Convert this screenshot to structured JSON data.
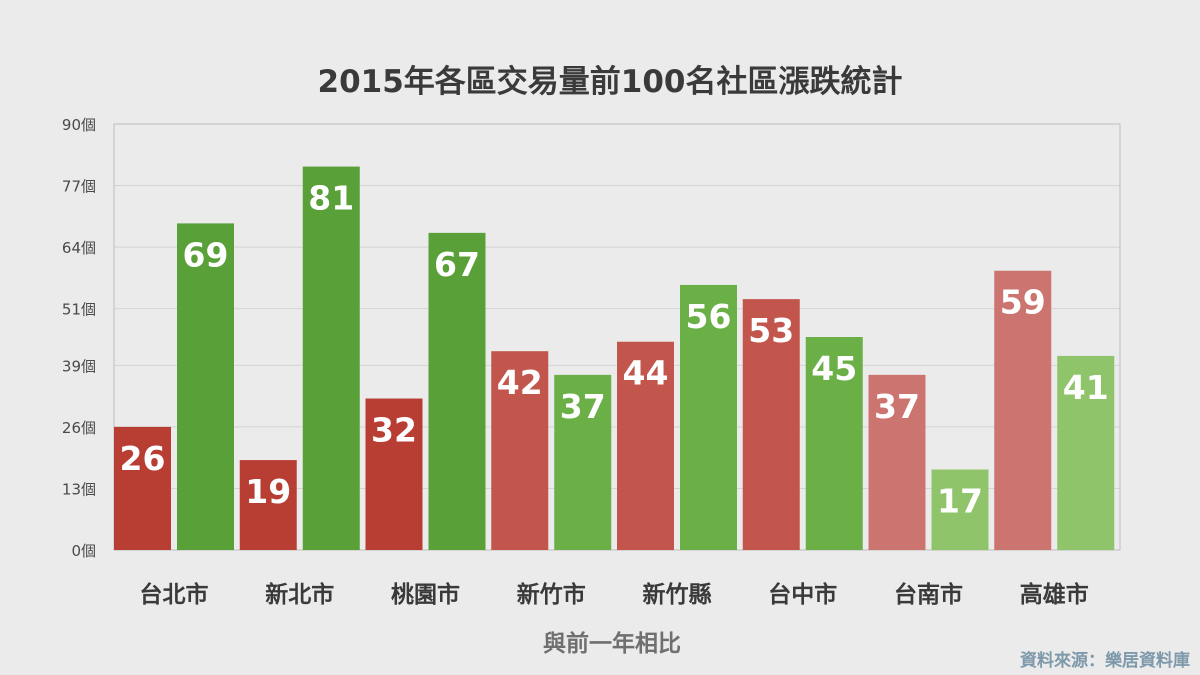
{
  "chart_data": {
    "type": "bar",
    "title": "2015年各區交易量前100名社區漲跌統計",
    "xlabel": "與前一年相比",
    "ylabel": "",
    "source": "資料來源：樂居資料庫",
    "categories": [
      "台北市",
      "新北市",
      "桃園市",
      "新竹市",
      "新竹縣",
      "台中市",
      "台南市",
      "高雄市"
    ],
    "ylim": [
      0,
      90
    ],
    "yticks": [
      0,
      13,
      26,
      39,
      51,
      64,
      77,
      90
    ],
    "ytick_labels": [
      "0個",
      "13個",
      "26個",
      "39個",
      "51個",
      "64個",
      "77個",
      "90個"
    ],
    "grid": true,
    "legend": "none",
    "series": [
      {
        "values": [
          26,
          19,
          32,
          42,
          44,
          53,
          37,
          59
        ],
        "colors": [
          "#b83e34",
          "#b83e34",
          "#b83e34",
          "#c2554c",
          "#c2554c",
          "#c2554c",
          "#cc7570",
          "#cc7570"
        ]
      },
      {
        "values": [
          69,
          81,
          67,
          37,
          56,
          45,
          17,
          41
        ],
        "colors": [
          "#58a037",
          "#58a037",
          "#58a037",
          "#6baf47",
          "#6baf47",
          "#6baf47",
          "#8fc46a",
          "#8fc46a"
        ]
      }
    ]
  }
}
